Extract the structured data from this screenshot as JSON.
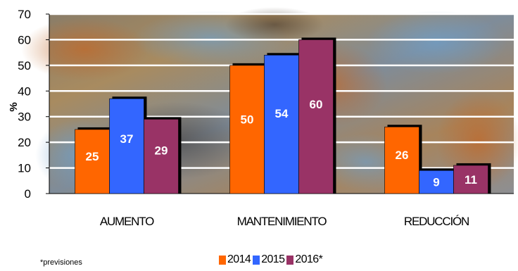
{
  "chart_data": {
    "type": "bar",
    "title": "",
    "xlabel": "",
    "ylabel": "%",
    "ylim": [
      0,
      70
    ],
    "yticks": [
      0,
      10,
      20,
      30,
      40,
      50,
      60,
      70
    ],
    "grid": true,
    "legend_position": "bottom",
    "categories": [
      "AUMENTO",
      "MANTENIMIENTO",
      "REDUCCIÓN"
    ],
    "series": [
      {
        "name": "2014",
        "color": "#ff6600",
        "values": [
          25,
          50,
          26
        ]
      },
      {
        "name": "2015",
        "color": "#3366ff",
        "values": [
          37,
          54,
          9
        ]
      },
      {
        "name": "2016*",
        "color": "#993366",
        "values": [
          29,
          60,
          11
        ]
      }
    ],
    "annotations": [
      "*previsiones"
    ]
  }
}
